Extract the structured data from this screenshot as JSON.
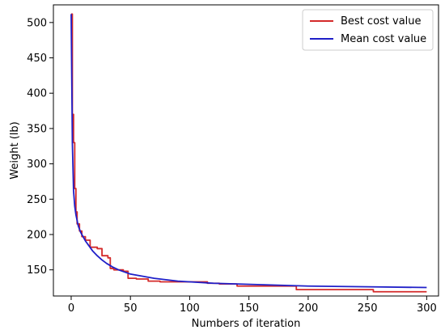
{
  "chart_data": {
    "type": "line",
    "title": "",
    "xlabel": "Numbers of iteration",
    "ylabel": "Weight (lb)",
    "xlim": [
      -15,
      310
    ],
    "ylim": [
      113,
      525
    ],
    "xticks": [
      0,
      50,
      100,
      150,
      200,
      250,
      300
    ],
    "yticks": [
      150,
      200,
      250,
      300,
      350,
      400,
      450,
      500
    ],
    "grid": false,
    "legend_position": "top-right",
    "series": [
      {
        "name": "Best cost value",
        "color": "#d42a2a",
        "step": true,
        "x": [
          0,
          1,
          2,
          3,
          4,
          5,
          7,
          9,
          12,
          16,
          22,
          26,
          31,
          33,
          36,
          42,
          44,
          48,
          55,
          65,
          75,
          85,
          95,
          105,
          115,
          125,
          140,
          190,
          255,
          300
        ],
        "y": [
          512,
          370,
          330,
          265,
          232,
          215,
          205,
          197,
          192,
          182,
          180,
          170,
          167,
          152,
          150,
          150,
          148,
          138,
          137,
          134,
          133,
          133,
          133,
          133,
          131,
          130,
          127,
          122,
          119,
          119
        ]
      },
      {
        "name": "Mean cost value",
        "color": "#1f1fc8",
        "step": false,
        "x": [
          0,
          1,
          2,
          3,
          4,
          5,
          6,
          8,
          10,
          12,
          15,
          18,
          22,
          26,
          30,
          35,
          40,
          45,
          50,
          60,
          70,
          80,
          90,
          100,
          120,
          140,
          160,
          180,
          200,
          250,
          300
        ],
        "y": [
          512,
          330,
          262,
          240,
          228,
          220,
          212,
          203,
          197,
          191,
          184,
          177,
          170,
          164,
          159,
          154,
          150,
          147,
          144,
          141,
          138,
          136,
          134,
          133,
          131,
          130,
          129,
          128,
          127,
          126,
          125
        ]
      }
    ]
  }
}
